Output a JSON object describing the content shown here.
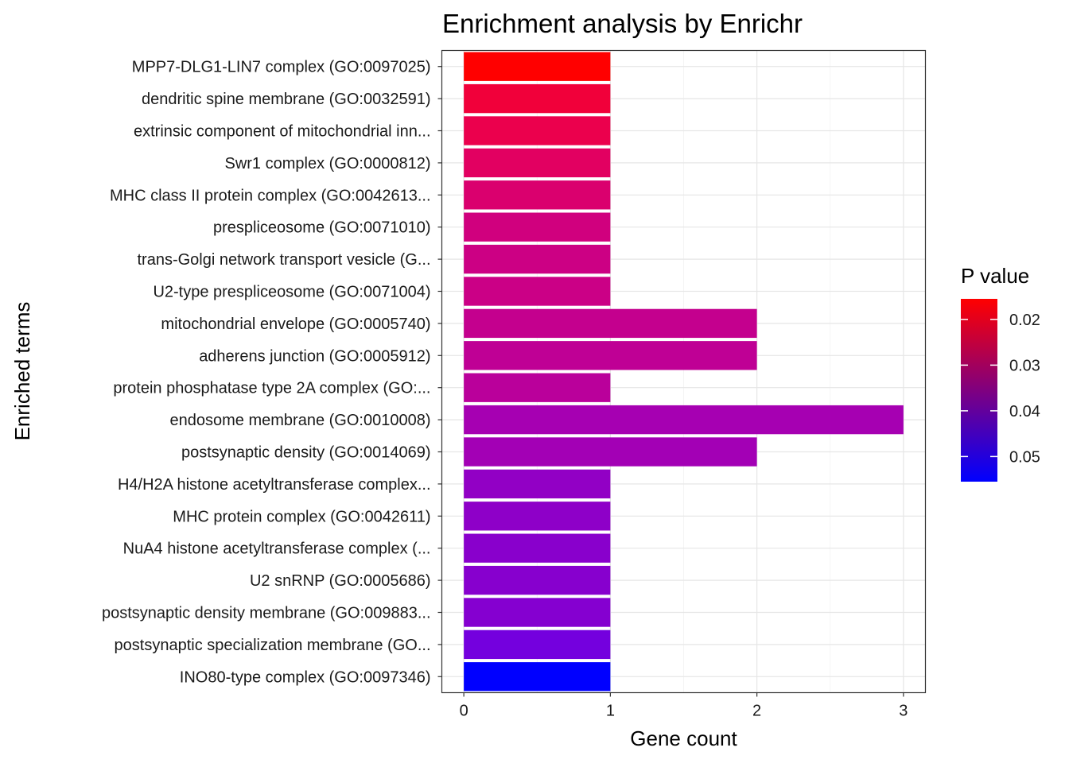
{
  "chart_data": {
    "type": "bar",
    "orientation": "horizontal",
    "title": "Enrichment analysis by Enrichr",
    "xlabel": "Gene count",
    "ylabel": "Enriched terms",
    "xlim": [
      -0.15,
      3.15
    ],
    "x_ticks": [
      0,
      1,
      2,
      3
    ],
    "x_tick_labels": [
      "0",
      "1",
      "2",
      "3"
    ],
    "grid": true,
    "categories": [
      "MPP7-DLG1-LIN7 complex (GO:0097025)",
      "dendritic spine membrane (GO:0032591)",
      "extrinsic component of mitochondrial inn...",
      "Swr1 complex (GO:0000812)",
      "MHC class II protein complex (GO:0042613...",
      "prespliceosome (GO:0071010)",
      "trans-Golgi network transport vesicle (G...",
      "U2-type prespliceosome (GO:0071004)",
      "mitochondrial envelope (GO:0005740)",
      "adherens junction (GO:0005912)",
      "protein phosphatase type 2A complex (GO:...",
      "endosome membrane (GO:0010008)",
      "postsynaptic density (GO:0014069)",
      "H4/H2A histone acetyltransferase complex...",
      "MHC protein complex (GO:0042611)",
      "NuA4 histone acetyltransferase complex (...",
      "U2 snRNP (GO:0005686)",
      "postsynaptic density membrane (GO:009883...",
      "postsynaptic specialization membrane (GO...",
      "INO80-type complex (GO:0097346)"
    ],
    "values": [
      1,
      1,
      1,
      1,
      1,
      1,
      1,
      1,
      2,
      2,
      1,
      3,
      2,
      1,
      1,
      1,
      1,
      1,
      1,
      1
    ],
    "fill_colors": [
      "#FF0000",
      "#F1003A",
      "#EB004D",
      "#E20061",
      "#DA006E",
      "#D0007E",
      "#CC0084",
      "#CB0086",
      "#C4008E",
      "#BF0095",
      "#BA009B",
      "#A600B2",
      "#A300B5",
      "#9200C5",
      "#8E00C8",
      "#8900CC",
      "#8700CE",
      "#8500D0",
      "#7400DE",
      "#0000FF"
    ],
    "legend": {
      "title": "P value",
      "placement": "right",
      "scale_range": [
        0.0155,
        0.0555
      ],
      "color_low": "#FF0000",
      "color_high": "#0000FF",
      "ticks": [
        0.02,
        0.03,
        0.04,
        0.05
      ],
      "tick_labels": [
        "0.02",
        "0.03",
        "0.04",
        "0.05"
      ]
    }
  }
}
